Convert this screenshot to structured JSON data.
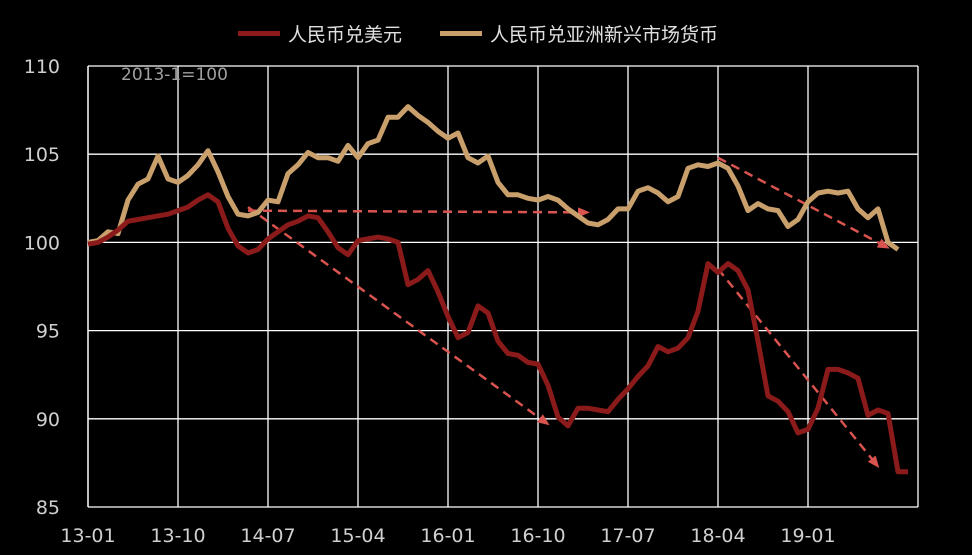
{
  "chart_data": {
    "type": "line",
    "title": "",
    "annotation": "2013-1=100",
    "xlabel": "",
    "ylabel": "",
    "ylim": [
      85,
      110
    ],
    "yticks": [
      85,
      90,
      95,
      100,
      105,
      110
    ],
    "xticks": [
      "13-01",
      "13-10",
      "14-07",
      "15-04",
      "16-01",
      "16-10",
      "17-07",
      "18-04",
      "19-01"
    ],
    "legend_position": "top-center",
    "grid": true,
    "x_start": "2013-01",
    "x_end": "2019-12",
    "series": [
      {
        "name": "人民币兑美元",
        "color": "#8b1a1a",
        "points": [
          [
            "2013-01",
            99.9
          ],
          [
            "2013-02",
            100.0
          ],
          [
            "2013-03",
            100.3
          ],
          [
            "2013-04",
            100.7
          ],
          [
            "2013-05",
            101.2
          ],
          [
            "2013-06",
            101.3
          ],
          [
            "2013-07",
            101.4
          ],
          [
            "2013-08",
            101.5
          ],
          [
            "2013-09",
            101.6
          ],
          [
            "2013-10",
            101.8
          ],
          [
            "2013-11",
            102.0
          ],
          [
            "2013-12",
            102.4
          ],
          [
            "2014-01",
            102.7
          ],
          [
            "2014-02",
            102.3
          ],
          [
            "2014-03",
            100.8
          ],
          [
            "2014-04",
            99.8
          ],
          [
            "2014-05",
            99.4
          ],
          [
            "2014-06",
            99.6
          ],
          [
            "2014-07",
            100.2
          ],
          [
            "2014-08",
            100.6
          ],
          [
            "2014-09",
            101.0
          ],
          [
            "2014-10",
            101.2
          ],
          [
            "2014-11",
            101.5
          ],
          [
            "2014-12",
            101.4
          ],
          [
            "2015-01",
            100.6
          ],
          [
            "2015-02",
            99.7
          ],
          [
            "2015-03",
            99.3
          ],
          [
            "2015-04",
            100.1
          ],
          [
            "2015-05",
            100.2
          ],
          [
            "2015-06",
            100.3
          ],
          [
            "2015-07",
            100.2
          ],
          [
            "2015-08",
            100.0
          ],
          [
            "2015-09",
            97.6
          ],
          [
            "2015-10",
            97.9
          ],
          [
            "2015-11",
            98.4
          ],
          [
            "2015-12",
            97.2
          ],
          [
            "2016-01",
            95.8
          ],
          [
            "2016-02",
            94.6
          ],
          [
            "2016-03",
            94.9
          ],
          [
            "2016-04",
            96.4
          ],
          [
            "2016-05",
            96.0
          ],
          [
            "2016-06",
            94.4
          ],
          [
            "2016-07",
            93.7
          ],
          [
            "2016-08",
            93.6
          ],
          [
            "2016-09",
            93.2
          ],
          [
            "2016-10",
            93.1
          ],
          [
            "2016-11",
            91.9
          ],
          [
            "2016-12",
            90.1
          ],
          [
            "2017-01",
            89.6
          ],
          [
            "2017-02",
            90.6
          ],
          [
            "2017-03",
            90.6
          ],
          [
            "2017-04",
            90.5
          ],
          [
            "2017-05",
            90.4
          ],
          [
            "2017-06",
            91.1
          ],
          [
            "2017-07",
            91.7
          ],
          [
            "2017-08",
            92.4
          ],
          [
            "2017-09",
            93.0
          ],
          [
            "2017-10",
            94.1
          ],
          [
            "2017-11",
            93.8
          ],
          [
            "2017-12",
            94.0
          ],
          [
            "2018-01",
            94.6
          ],
          [
            "2018-02",
            96.1
          ],
          [
            "2018-03",
            98.8
          ],
          [
            "2018-04",
            98.3
          ],
          [
            "2018-05",
            98.8
          ],
          [
            "2018-06",
            98.4
          ],
          [
            "2018-07",
            97.3
          ],
          [
            "2018-08",
            94.4
          ],
          [
            "2018-09",
            91.3
          ],
          [
            "2018-10",
            91.0
          ],
          [
            "2018-11",
            90.4
          ],
          [
            "2018-12",
            89.2
          ],
          [
            "2019-01",
            89.4
          ],
          [
            "2019-02",
            90.6
          ],
          [
            "2019-03",
            92.8
          ],
          [
            "2019-04",
            92.8
          ],
          [
            "2019-05",
            92.6
          ],
          [
            "2019-06",
            92.3
          ],
          [
            "2019-07",
            90.2
          ],
          [
            "2019-08",
            90.5
          ],
          [
            "2019-09",
            90.3
          ],
          [
            "2019-10",
            87.0
          ],
          [
            "2019-11",
            87.0
          ]
        ]
      },
      {
        "name": "人民币兑亚洲新兴市场货币",
        "color": "#c9a06c",
        "points": [
          [
            "2013-01",
            100.0
          ],
          [
            "2013-02",
            100.1
          ],
          [
            "2013-03",
            100.6
          ],
          [
            "2013-04",
            100.5
          ],
          [
            "2013-05",
            102.4
          ],
          [
            "2013-06",
            103.3
          ],
          [
            "2013-07",
            103.6
          ],
          [
            "2013-08",
            104.9
          ],
          [
            "2013-09",
            103.6
          ],
          [
            "2013-10",
            103.4
          ],
          [
            "2013-11",
            103.8
          ],
          [
            "2013-12",
            104.4
          ],
          [
            "2014-01",
            105.2
          ],
          [
            "2014-02",
            104.0
          ],
          [
            "2014-03",
            102.6
          ],
          [
            "2014-04",
            101.6
          ],
          [
            "2014-05",
            101.5
          ],
          [
            "2014-06",
            101.7
          ],
          [
            "2014-07",
            102.4
          ],
          [
            "2014-08",
            102.3
          ],
          [
            "2014-09",
            103.9
          ],
          [
            "2014-10",
            104.4
          ],
          [
            "2014-11",
            105.1
          ],
          [
            "2014-12",
            104.8
          ],
          [
            "2015-01",
            104.8
          ],
          [
            "2015-02",
            104.6
          ],
          [
            "2015-03",
            105.5
          ],
          [
            "2015-04",
            104.8
          ],
          [
            "2015-05",
            105.6
          ],
          [
            "2015-06",
            105.8
          ],
          [
            "2015-07",
            107.1
          ],
          [
            "2015-08",
            107.1
          ],
          [
            "2015-09",
            107.7
          ],
          [
            "2015-10",
            107.2
          ],
          [
            "2015-11",
            106.8
          ],
          [
            "2015-12",
            106.3
          ],
          [
            "2016-01",
            105.9
          ],
          [
            "2016-02",
            106.2
          ],
          [
            "2016-03",
            104.8
          ],
          [
            "2016-04",
            104.5
          ],
          [
            "2016-05",
            104.9
          ],
          [
            "2016-06",
            103.4
          ],
          [
            "2016-07",
            102.7
          ],
          [
            "2016-08",
            102.7
          ],
          [
            "2016-09",
            102.5
          ],
          [
            "2016-10",
            102.4
          ],
          [
            "2016-11",
            102.6
          ],
          [
            "2016-12",
            102.4
          ],
          [
            "2017-01",
            101.9
          ],
          [
            "2017-02",
            101.5
          ],
          [
            "2017-03",
            101.1
          ],
          [
            "2017-04",
            101.0
          ],
          [
            "2017-05",
            101.3
          ],
          [
            "2017-06",
            101.9
          ],
          [
            "2017-07",
            101.9
          ],
          [
            "2017-08",
            102.9
          ],
          [
            "2017-09",
            103.1
          ],
          [
            "2017-10",
            102.8
          ],
          [
            "2017-11",
            102.3
          ],
          [
            "2017-12",
            102.6
          ],
          [
            "2018-01",
            104.2
          ],
          [
            "2018-02",
            104.4
          ],
          [
            "2018-03",
            104.3
          ],
          [
            "2018-04",
            104.5
          ],
          [
            "2018-05",
            104.2
          ],
          [
            "2018-06",
            103.2
          ],
          [
            "2018-07",
            101.8
          ],
          [
            "2018-08",
            102.2
          ],
          [
            "2018-09",
            101.9
          ],
          [
            "2018-10",
            101.8
          ],
          [
            "2018-11",
            100.9
          ],
          [
            "2018-12",
            101.3
          ],
          [
            "2019-01",
            102.3
          ],
          [
            "2019-02",
            102.8
          ],
          [
            "2019-03",
            102.9
          ],
          [
            "2019-04",
            102.8
          ],
          [
            "2019-05",
            102.9
          ],
          [
            "2019-06",
            101.9
          ],
          [
            "2019-07",
            101.4
          ],
          [
            "2019-08",
            101.9
          ],
          [
            "2019-09",
            100.0
          ],
          [
            "2019-10",
            99.6
          ]
        ]
      }
    ],
    "trend_arrows": {
      "color": "#d9534f",
      "lines": [
        {
          "from": [
            "2014-05",
            101.8
          ],
          "to": [
            "2017-03",
            101.7
          ]
        },
        {
          "from": [
            "2014-05",
            102.0
          ],
          "to": [
            "2016-11",
            89.7
          ]
        },
        {
          "from": [
            "2018-04",
            104.8
          ],
          "to": [
            "2019-09",
            99.7
          ]
        },
        {
          "from": [
            "2018-04",
            98.5
          ],
          "to": [
            "2019-08",
            87.3
          ]
        }
      ]
    }
  }
}
